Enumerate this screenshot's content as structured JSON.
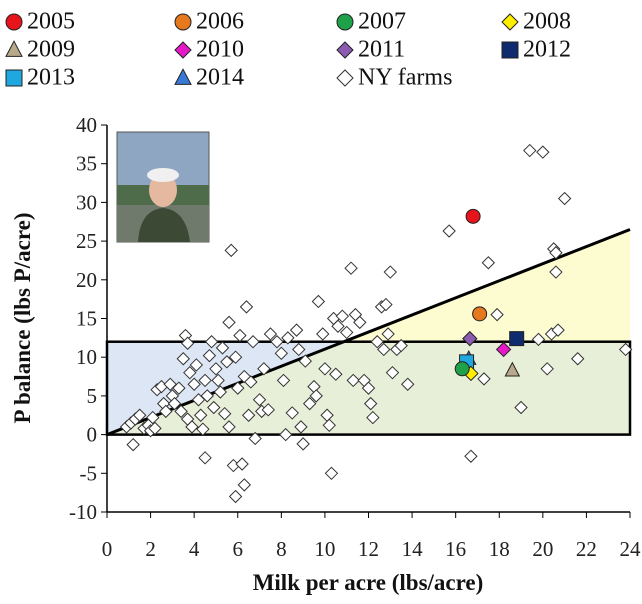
{
  "chart_data": {
    "type": "scatter",
    "x_label": "Milk per acre (lbs/acre)",
    "y_label": "P balance (lbs P/acre)",
    "xlim": [
      0,
      24
    ],
    "xticks": [
      0,
      2,
      4,
      6,
      8,
      10,
      12,
      14,
      16,
      18,
      20,
      22,
      24
    ],
    "ylim": [
      -10,
      40
    ],
    "yticks": [
      -10,
      -5,
      0,
      5,
      10,
      15,
      20,
      25,
      30,
      35,
      40
    ],
    "threshold_y": 12,
    "reference_line": {
      "x": [
        0,
        24
      ],
      "y": [
        0,
        26.5
      ]
    },
    "region_colors": [
      "#dce6f5",
      "#fdfbd0",
      "#e8efd8"
    ],
    "series": [
      {
        "name": "2005",
        "color": "#e8141b",
        "marker": "circle",
        "x": [
          16.8
        ],
        "values": [
          28.2
        ]
      },
      {
        "name": "2006",
        "color": "#e6781e",
        "marker": "circle",
        "x": [
          17.1
        ],
        "values": [
          15.6
        ]
      },
      {
        "name": "2007",
        "color": "#1fa14a",
        "marker": "circle",
        "x": [
          16.3
        ],
        "values": [
          8.5
        ]
      },
      {
        "name": "2008",
        "color": "#ffee00",
        "marker": "diamond",
        "x": [
          16.7
        ],
        "values": [
          7.9
        ]
      },
      {
        "name": "2009",
        "color": "#b8a98a",
        "marker": "triangle",
        "x": [
          18.6
        ],
        "values": [
          8.3
        ]
      },
      {
        "name": "2010",
        "color": "#e619c8",
        "marker": "diamond",
        "x": [
          18.2
        ],
        "values": [
          11.0
        ]
      },
      {
        "name": "2011",
        "color": "#8a5bb0",
        "marker": "diamond",
        "x": [
          16.65
        ],
        "values": [
          12.4
        ]
      },
      {
        "name": "2012",
        "color": "#0f2a6e",
        "marker": "square",
        "x": [
          18.8
        ],
        "values": [
          12.4
        ]
      },
      {
        "name": "2013",
        "color": "#1fa8e0",
        "marker": "square",
        "x": [
          16.5
        ],
        "values": [
          9.4
        ]
      },
      {
        "name": "2014",
        "color": "#3a78d6",
        "marker": "triangle",
        "x": [
          16.6
        ],
        "values": [
          9.8
        ]
      },
      {
        "name": "NY farms",
        "color": "#ffffff",
        "marker": "diamond",
        "x": [
          0.9,
          1.1,
          1.3,
          1.2,
          1.5,
          1.7,
          1.9,
          2.0,
          2.2,
          2.1,
          2.3,
          2.5,
          2.6,
          2.7,
          2.9,
          3.0,
          3.1,
          3.3,
          3.4,
          3.5,
          3.6,
          3.7,
          3.8,
          3.7,
          3.9,
          4.0,
          4.1,
          4.2,
          4.3,
          4.4,
          4.5,
          4.5,
          4.6,
          4.7,
          4.8,
          4.9,
          5.0,
          5.1,
          5.2,
          5.3,
          5.4,
          5.5,
          5.6,
          5.6,
          5.7,
          5.8,
          5.9,
          5.9,
          6.0,
          6.1,
          6.2,
          6.3,
          6.3,
          6.4,
          6.5,
          6.6,
          6.7,
          6.8,
          7.0,
          7.1,
          7.2,
          7.4,
          7.5,
          7.8,
          8.0,
          8.1,
          8.2,
          8.3,
          8.5,
          8.7,
          8.8,
          8.9,
          9.0,
          9.1,
          9.3,
          9.5,
          9.6,
          9.7,
          9.9,
          10.0,
          10.1,
          10.2,
          10.3,
          10.4,
          10.5,
          10.6,
          10.8,
          11.0,
          11.2,
          11.3,
          11.4,
          11.6,
          11.8,
          12.0,
          12.1,
          12.2,
          12.4,
          12.6,
          12.7,
          12.8,
          12.9,
          13.0,
          13.1,
          13.3,
          13.5,
          13.8,
          15.7,
          16.7,
          17.3,
          17.5,
          17.9,
          19.0,
          19.4,
          20.0,
          19.8,
          20.2,
          20.4,
          20.5,
          20.6,
          20.6,
          20.7,
          21.0,
          21.6,
          23.8
        ],
        "values": [
          1,
          1.5,
          2,
          -1.3,
          2.5,
          0.8,
          1.2,
          0.5,
          0.8,
          2.2,
          5.8,
          6.2,
          4,
          3,
          6.5,
          5,
          4,
          6,
          3,
          9.8,
          12.8,
          11.8,
          8,
          2,
          1,
          6.5,
          9,
          4.5,
          2.5,
          0.7,
          7,
          -3,
          5,
          10.2,
          12,
          3.5,
          8.5,
          7,
          5.5,
          11.2,
          2.7,
          9.4,
          14.5,
          1,
          23.8,
          -4,
          -8,
          10,
          6,
          12.8,
          -3.8,
          -6.5,
          7.5,
          16.5,
          2.5,
          6.8,
          12,
          -0.5,
          4.5,
          3,
          8.5,
          3.2,
          13,
          12,
          10.5,
          7,
          0,
          12.5,
          2.8,
          13.5,
          11,
          1,
          -1.2,
          9.5,
          4,
          6.2,
          5,
          17.2,
          13,
          8.5,
          2.5,
          1.2,
          -5,
          15,
          7.8,
          14,
          15.3,
          13.2,
          21.5,
          7,
          15.5,
          14.5,
          7,
          6,
          4,
          2.2,
          12,
          16.5,
          11,
          16.8,
          13,
          21,
          8,
          11,
          11.5,
          6.5,
          26.3,
          -2.8,
          7.2,
          22.2,
          15.5,
          3.5,
          36.7,
          36.5,
          12.3,
          8.5,
          13,
          24,
          23.5,
          21,
          13.5,
          30.5,
          9.8,
          11
        ]
      }
    ]
  }
}
